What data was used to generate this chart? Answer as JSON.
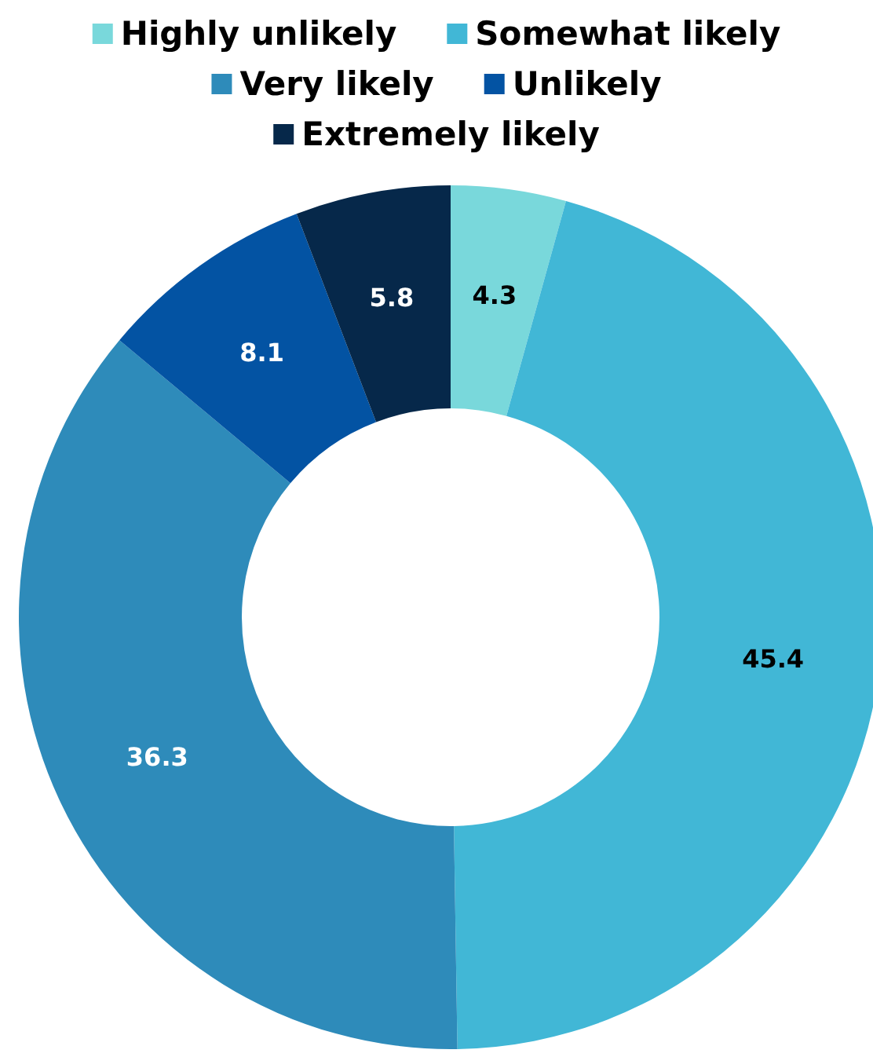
{
  "chart_data": {
    "type": "donut",
    "categories": [
      "Highly unlikely",
      "Somewhat likely",
      "Very likely",
      "Unlikely",
      "Extremely likely"
    ],
    "values": [
      4.3,
      45.4,
      36.3,
      8.1,
      5.8
    ],
    "colors": [
      "#79d8db",
      "#41b7d6",
      "#2e8bba",
      "#0353a3",
      "#06284a"
    ],
    "data_labels": true,
    "legend": "top"
  }
}
